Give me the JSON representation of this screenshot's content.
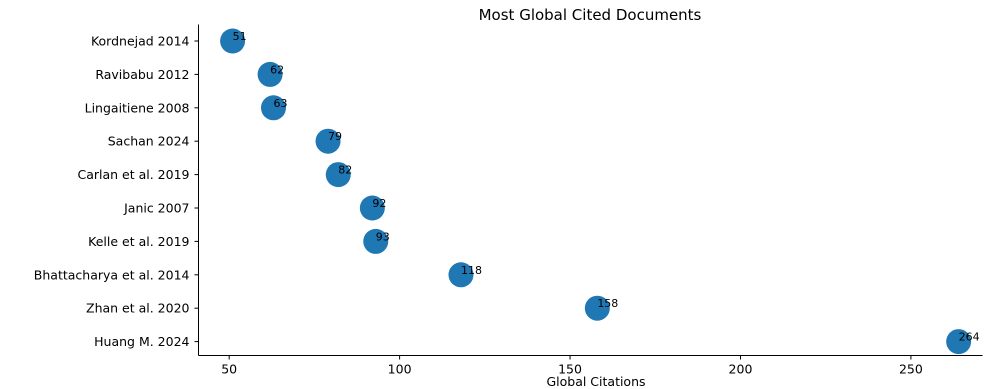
{
  "chart_data": {
    "type": "scatter",
    "title": "Most Global Cited Documents",
    "xlabel": "Global Citations",
    "ylabel": "",
    "xlim": [
      41,
      271
    ],
    "xticks": [
      50,
      100,
      150,
      200,
      250
    ],
    "grid": false,
    "color": "#1f77b4",
    "points": [
      {
        "label": "Kordnejad 2014",
        "value": 51
      },
      {
        "label": "Ravibabu 2012",
        "value": 62
      },
      {
        "label": "Lingaitiene 2008",
        "value": 63
      },
      {
        "label": "Sachan 2024",
        "value": 79
      },
      {
        "label": "Carlan et al. 2019",
        "value": 82
      },
      {
        "label": "Janic 2007",
        "value": 92
      },
      {
        "label": "Kelle et al. 2019",
        "value": 93
      },
      {
        "label": "Bhattacharya et al. 2014",
        "value": 118
      },
      {
        "label": "Zhan et al. 2020",
        "value": 158
      },
      {
        "label": "Huang M. 2024",
        "value": 264
      }
    ]
  }
}
